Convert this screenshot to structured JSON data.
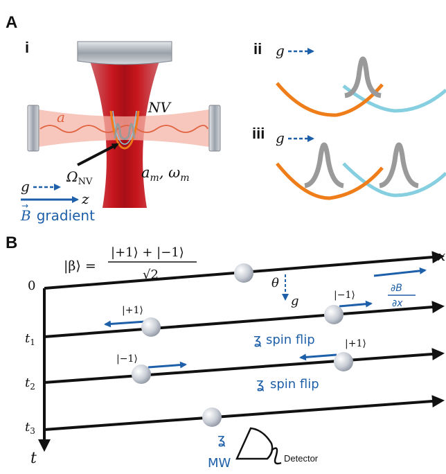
{
  "colors": {
    "laser": "#c8161d",
    "cavity_pink": "#f4b3a6",
    "orange": "#ef7d1a",
    "cyan": "#86cfe0",
    "gray_peak": "#9a9a9a",
    "blue": "#1d5fa8",
    "black": "#111111"
  },
  "panel_a": {
    "label": "A",
    "sub_i": "i",
    "sub_ii": "ii",
    "sub_iii": "iii",
    "cavity_mode": "a",
    "nv": "NV",
    "omega_nv_main": "Ω",
    "omega_nv_sub": "NV",
    "mech_mode": "a",
    "mech_mode_sub": "m",
    "mech_freq": "ω",
    "mech_freq_sub": "m",
    "g": "g",
    "z": "z",
    "b_gradient_symbol": "B",
    "b_gradient_text": "gradient"
  },
  "panel_b": {
    "label": "B",
    "state_lhs": "|β⟩ =",
    "state_num": "|+1⟩ + |−1⟩",
    "state_den": "√2",
    "x_axis": "x",
    "t_axis": "t",
    "time_0": "0",
    "time_1": "t",
    "time_1_sub": "1",
    "time_2": "t",
    "time_2_sub": "2",
    "time_3": "t",
    "time_3_sub": "3",
    "theta": "θ",
    "g": "g",
    "dbdx_num": "∂B",
    "dbdx_den": "∂x",
    "ket_plus": "|+1⟩",
    "ket_minus": "|−1⟩",
    "spin_flip": "spin flip",
    "mw": "MW",
    "detector": "Detector"
  }
}
